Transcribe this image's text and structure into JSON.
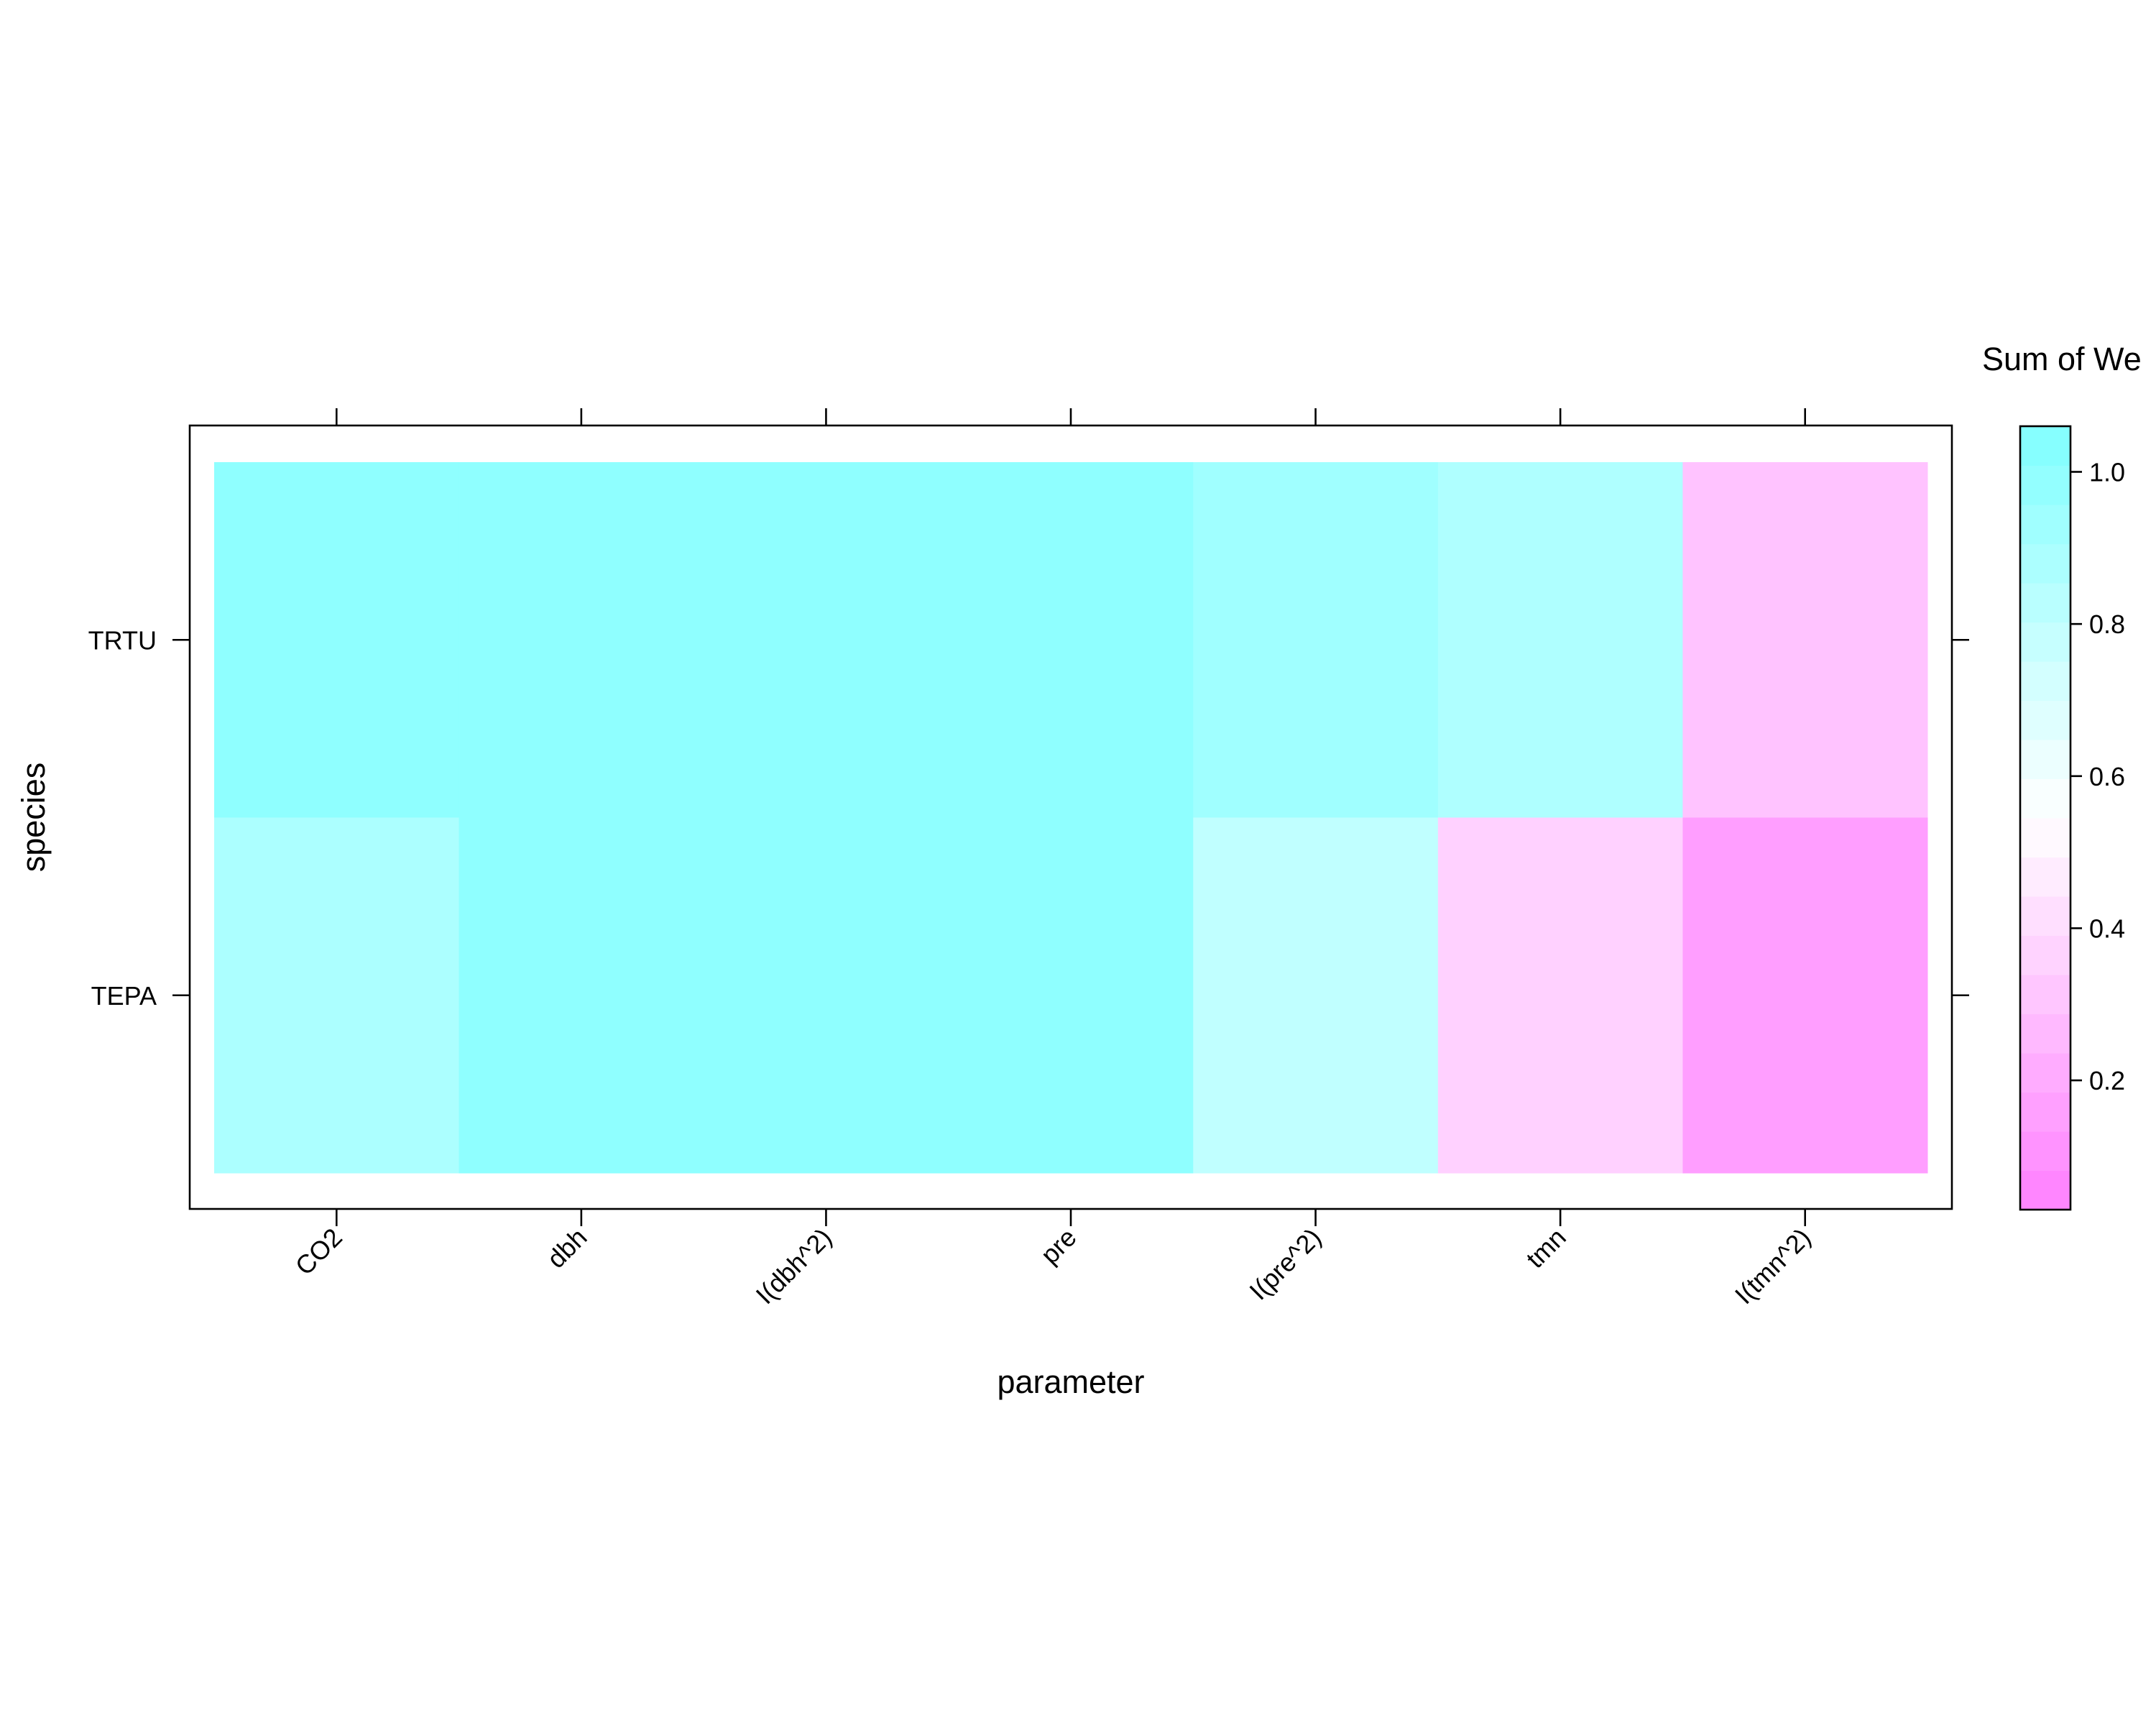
{
  "chart_data": {
    "type": "heatmap",
    "xlabel": "parameter",
    "ylabel": "species",
    "x_categories": [
      "CO2",
      "dbh",
      "I(dbh^2)",
      "pre",
      "I(pre^2)",
      "tmn",
      "I(tmn^2)"
    ],
    "y_categories": [
      "TEPA",
      "TRTU"
    ],
    "rows": [
      {
        "species": "TRTU",
        "values": [
          1.0,
          1.0,
          1.0,
          1.0,
          0.93,
          0.87,
          0.3
        ]
      },
      {
        "species": "TEPA",
        "values": [
          0.88,
          1.0,
          1.0,
          1.0,
          0.8,
          0.36,
          0.15
        ]
      }
    ],
    "colorbar": {
      "title": "Sum of We",
      "range": [
        0.03,
        1.06
      ],
      "ticks": [
        "0.2",
        "0.4",
        "0.6",
        "0.8",
        "1.0"
      ],
      "low_color": "#ff80ff",
      "high_color": "#80ffff",
      "mid_color": "#ffffff"
    }
  }
}
